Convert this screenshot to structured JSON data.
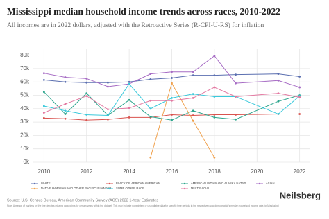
{
  "chart_data": {
    "type": "line",
    "title": "Mississippi median household income trends across races, 2010-2022",
    "subtitle": "All incomes are in 2022 dollars, adjusted with the Retroactive Series (R-CPI-U-RS) for inflation",
    "x": [
      2010,
      2011,
      2012,
      2013,
      2014,
      2015,
      2016,
      2017,
      2018,
      2019,
      2021,
      2022
    ],
    "xlim": [
      2009.5,
      2022.5
    ],
    "xticks": [
      2010,
      2012,
      2014,
      2016,
      2018,
      2020,
      2022
    ],
    "ylim": [
      0,
      85000
    ],
    "yticks": [
      {
        "value": 0,
        "label": "0k"
      },
      {
        "value": 10000,
        "label": "10k"
      },
      {
        "value": 20000,
        "label": "20k"
      },
      {
        "value": 30000,
        "label": "30k"
      },
      {
        "value": 40000,
        "label": "40k"
      },
      {
        "value": 50000,
        "label": "50k"
      },
      {
        "value": 60000,
        "label": "60k"
      },
      {
        "value": 70000,
        "label": "70k"
      },
      {
        "value": 80000,
        "label": "80k"
      }
    ],
    "grid": true,
    "series": [
      {
        "name": "WHITE",
        "color": "#5b6fb0",
        "values": [
          61500,
          60000,
          59500,
          59500,
          60000,
          62000,
          63000,
          65000,
          65000,
          65500,
          66000,
          64000
        ]
      },
      {
        "name": "BLACK OR AFRICAN AMERICAN",
        "color": "#d9534f",
        "values": [
          33000,
          32500,
          31500,
          32000,
          33500,
          33500,
          35500,
          35000,
          35500,
          35500,
          36000,
          36000
        ]
      },
      {
        "name": "AMERICAN INDIAN AND ALASKA NATIVE",
        "color": "#2ca58d",
        "values": [
          52500,
          36000,
          51500,
          35000,
          46500,
          34000,
          31500,
          38500,
          33500,
          32000,
          45500,
          50000
        ]
      },
      {
        "name": "ASIAN",
        "color": "#a66bc4",
        "values": [
          66500,
          63500,
          62500,
          56500,
          58500,
          66000,
          67500,
          67500,
          79500,
          59000,
          61000,
          56000
        ]
      },
      {
        "name": "NATIVE HAWAIIAN AND OTHER PACIFIC ISLANDER",
        "color": "#f0a04b",
        "values": [
          null,
          null,
          null,
          null,
          null,
          3500,
          59000,
          31000,
          3500,
          null,
          null,
          null
        ]
      },
      {
        "name": "SOME OTHER RACE",
        "color": "#3bc9db",
        "values": [
          42000,
          38500,
          35500,
          35000,
          58500,
          40000,
          48000,
          51000,
          49000,
          49000,
          36000,
          49500
        ]
      },
      {
        "name": "MULTIRACIAL",
        "color": "#e377a0",
        "values": [
          37000,
          43500,
          49500,
          39500,
          40500,
          46000,
          46000,
          48000,
          56000,
          49000,
          51500,
          48500
        ]
      }
    ]
  },
  "footer": {
    "source": "Source: U.S. Census Bureau, American Community Survey (ACS) 2022 1-Year Estimates",
    "note": "Note: Absence of markers on the line denotes missing data points for certain years within the dataset. This may indicate nonexistent or unavailable data for specific time periods in the respective racial demographic's median household income data for Mississippi",
    "brand": "Neilsberg"
  }
}
